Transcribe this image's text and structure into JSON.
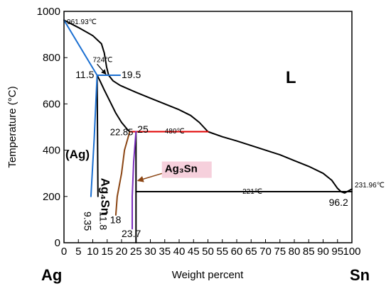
{
  "chart_data": {
    "type": "line",
    "xlabel": "Weight percent",
    "ylabel": "Temperature (°C)",
    "xlim": [
      0,
      100
    ],
    "ylim": [
      0,
      1000
    ],
    "xticks": [
      0,
      5,
      10,
      15,
      20,
      25,
      30,
      35,
      40,
      45,
      50,
      55,
      60,
      65,
      70,
      75,
      80,
      85,
      90,
      95,
      100
    ],
    "yticks": [
      0,
      200,
      400,
      600,
      800,
      1000
    ],
    "corner_labels": {
      "left": "Ag",
      "right": "Sn"
    },
    "series": [
      {
        "color": "#000000",
        "points": [
          [
            0,
            961.93
          ],
          [
            5,
            930
          ],
          [
            10,
            895
          ],
          [
            13,
            860
          ],
          [
            14,
            820
          ],
          [
            14.8,
            760
          ],
          [
            15.5,
            724
          ],
          [
            17,
            700
          ],
          [
            19.5,
            680
          ],
          [
            25,
            650
          ],
          [
            30,
            625
          ],
          [
            35,
            600
          ],
          [
            40,
            575
          ],
          [
            44,
            550
          ],
          [
            47,
            520
          ],
          [
            50,
            480
          ],
          [
            55,
            458
          ],
          [
            60,
            440
          ],
          [
            65,
            420
          ],
          [
            70,
            400
          ],
          [
            75,
            380
          ],
          [
            80,
            355
          ],
          [
            85,
            330
          ],
          [
            90,
            300
          ],
          [
            93,
            270
          ],
          [
            95,
            235
          ],
          [
            96.2,
            221
          ],
          [
            97.5,
            215
          ],
          [
            98.5,
            222
          ],
          [
            100,
            231.96
          ]
        ]
      },
      {
        "color": "#000000",
        "points": [
          [
            11.5,
            724
          ],
          [
            12.5,
            700
          ],
          [
            14,
            660
          ],
          [
            16,
            610
          ],
          [
            18,
            560
          ],
          [
            20,
            520
          ],
          [
            22,
            490
          ],
          [
            22.85,
            480
          ]
        ]
      },
      {
        "color": "#000000",
        "points": [
          [
            11.5,
            724
          ],
          [
            11.8,
            200
          ]
        ]
      },
      {
        "color": "#000000",
        "points": [
          [
            25,
            480
          ],
          [
            25,
            0
          ]
        ]
      },
      {
        "color": "#000000",
        "points": [
          [
            25,
            221
          ],
          [
            100,
            221
          ]
        ]
      },
      {
        "color": "#1b6fd1",
        "points": [
          [
            0,
            961.93
          ],
          [
            11.5,
            724
          ]
        ]
      },
      {
        "color": "#1b6fd1",
        "points": [
          [
            11.5,
            724
          ],
          [
            19.5,
            724
          ]
        ]
      },
      {
        "color": "#1b6fd1",
        "points": [
          [
            11.5,
            724
          ],
          [
            10.5,
            450
          ],
          [
            9.35,
            200
          ]
        ]
      },
      {
        "color": "#e00000",
        "points": [
          [
            22.85,
            480
          ],
          [
            50,
            480
          ]
        ]
      },
      {
        "color": "#8b4513",
        "points": [
          [
            22.85,
            480
          ],
          [
            21,
            400
          ],
          [
            20,
            300
          ],
          [
            18.5,
            200
          ],
          [
            18,
            120
          ]
        ]
      },
      {
        "color": "#7b2fbe",
        "points": [
          [
            25,
            480
          ],
          [
            24.2,
            350
          ],
          [
            23.7,
            200
          ],
          [
            23.7,
            60
          ]
        ]
      }
    ],
    "annotations": [
      {
        "text": "961.93℃",
        "x": 1,
        "y": 945
      },
      {
        "text": "724℃",
        "x": 10,
        "y": 780
      },
      {
        "text": "11.5",
        "x": 4,
        "y": 712
      },
      {
        "text": "19.5",
        "x": 20,
        "y": 712
      },
      {
        "text": "L",
        "x": 77,
        "y": 690
      },
      {
        "text": "22.85",
        "x": 16,
        "y": 465
      },
      {
        "text": "25",
        "x": 25.5,
        "y": 475
      },
      {
        "text": "480℃",
        "x": 35,
        "y": 473
      },
      {
        "text": "(Ag)",
        "x": 0.5,
        "y": 365
      },
      {
        "text": "Ag₄Sn",
        "x": 13,
        "y": 280
      },
      {
        "text": "Ag₃Sn",
        "x": 35,
        "y": 305
      },
      {
        "text": "221℃",
        "x": 62,
        "y": 212
      },
      {
        "text": "231.96℃",
        "x": 101,
        "y": 240
      },
      {
        "text": "96.2",
        "x": 92,
        "y": 160
      },
      {
        "text": "9.35",
        "x": 7,
        "y": 135
      },
      {
        "text": "11.8",
        "x": 12.5,
        "y": 135
      },
      {
        "text": "18",
        "x": 16,
        "y": 85
      },
      {
        "text": "23.7",
        "x": 20,
        "y": 25
      }
    ]
  }
}
